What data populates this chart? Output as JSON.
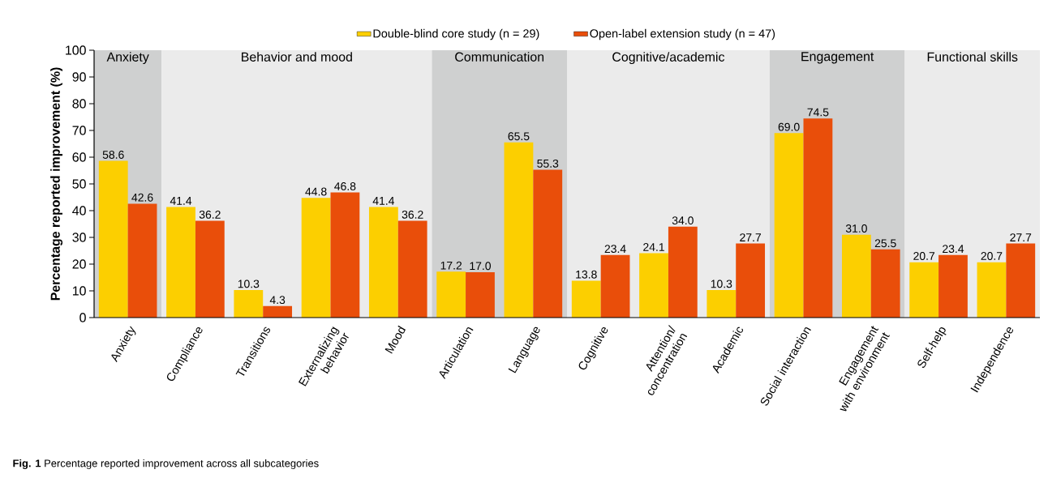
{
  "chart_data": {
    "type": "bar",
    "ylabel": "Percentage reported improvement (%)",
    "categories": [
      "Anxiety",
      "Compliance",
      "Transitions",
      "Externalizing behavior",
      "Mood",
      "Articulation",
      "Language",
      "Cognitive",
      "Attention/ concentration",
      "Academic",
      "Social interaction",
      "Engagement with environment",
      "Self-help",
      "Independence"
    ],
    "series": [
      {
        "name": "Double-blind core study (n = 29)",
        "color": "#fccf00",
        "values": [
          58.6,
          41.4,
          10.3,
          44.8,
          41.4,
          17.2,
          65.5,
          13.8,
          24.1,
          10.3,
          69.0,
          31.0,
          20.7,
          20.7
        ],
        "value_labels": [
          "58.6",
          "41.4",
          "10.3",
          "44.8",
          "41.4",
          "17.2",
          "65.5",
          "13.8",
          "24.1",
          "10.3",
          "69.0",
          "31.0",
          "20.7",
          "20.7"
        ]
      },
      {
        "name": "Open-label extension study (n = 47)",
        "color": "#e94e0a",
        "values": [
          42.6,
          36.2,
          4.3,
          46.8,
          36.2,
          17.0,
          55.3,
          23.4,
          34.0,
          27.7,
          74.5,
          25.5,
          23.4,
          27.7
        ],
        "value_labels": [
          "42.6",
          "36.2",
          "4.3",
          "46.8",
          "36.2",
          "17.0",
          "55.3",
          "23.4",
          "34.0",
          "27.7",
          "74.5",
          "25.5",
          "23.4",
          "27.7"
        ]
      }
    ],
    "ylim": [
      0,
      100
    ],
    "yticks": [
      0,
      10,
      20,
      30,
      40,
      50,
      60,
      70,
      80,
      90,
      100
    ],
    "bands": [
      {
        "axis": "x",
        "from": "Anxiety",
        "to": "Anxiety",
        "label": "Anxiety",
        "color": "#cfd0d0"
      },
      {
        "axis": "x",
        "from": "Compliance",
        "to": "Mood",
        "label": "Behavior and mood",
        "color": "#ebebeb"
      },
      {
        "axis": "x",
        "from": "Articulation",
        "to": "Language",
        "label": "Communication",
        "color": "#cfd0d0"
      },
      {
        "axis": "x",
        "from": "Cognitive",
        "to": "Academic",
        "label": "Cognitive/academic",
        "color": "#ebebeb"
      },
      {
        "axis": "x",
        "from": "Social interaction",
        "to": "Engagement with environment",
        "label": "Engagement",
        "color": "#cfd0d0"
      },
      {
        "axis": "x",
        "from": "Self-help",
        "to": "Independence",
        "label": "Functional skills",
        "color": "#ebebeb"
      }
    ],
    "legend": "top",
    "grid": false,
    "annotations": [
      "**Fig. 1** Percentage reported improvement across all subcategories"
    ]
  }
}
